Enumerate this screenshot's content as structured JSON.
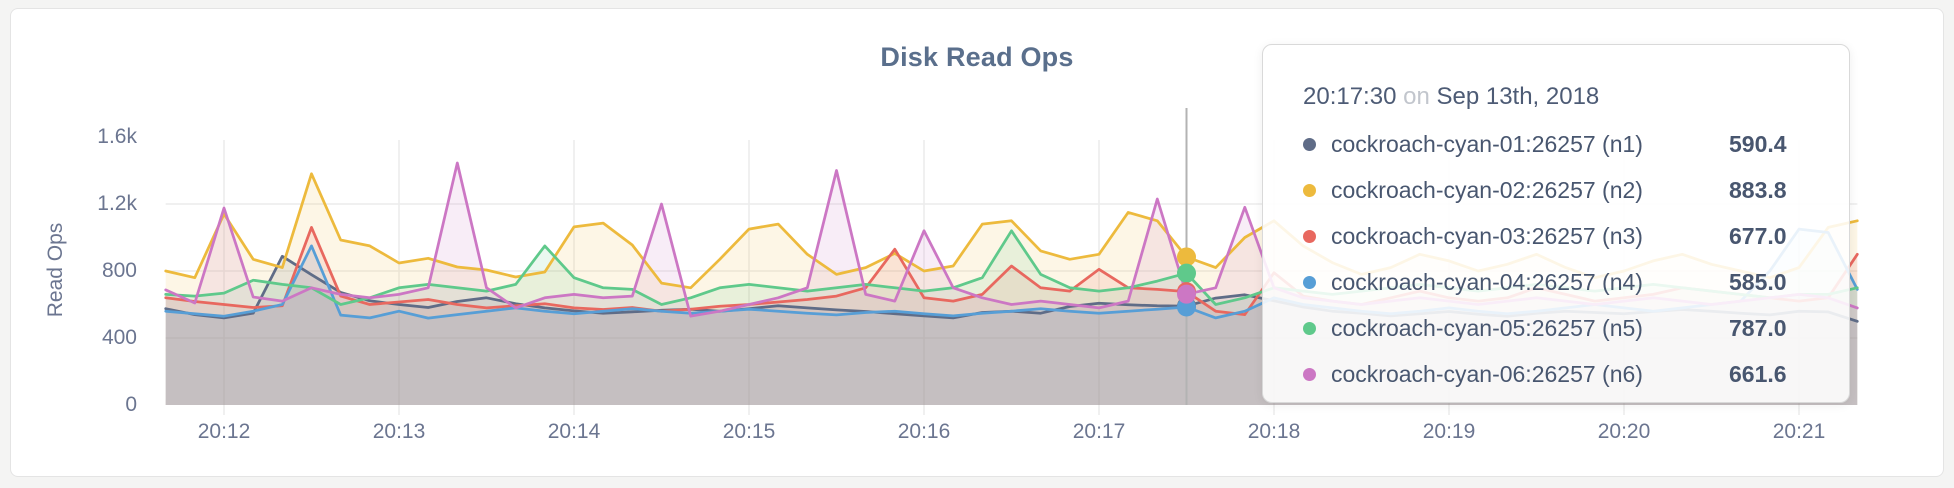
{
  "page": {
    "background": "#f4f4f3",
    "card_background": "#ffffff",
    "card_border": "#e4e4e4"
  },
  "chart": {
    "title": "Disk Read Ops",
    "ylabel": "Read Ops",
    "grid_color": "#ececec",
    "guideline_color": "#b3b3b3",
    "axis_text_color": "#6b7590"
  },
  "tooltip": {
    "time": "20:17:30",
    "on_word": "on",
    "date": "Sep 13th, 2018",
    "rows": [
      {
        "label": "cockroach-cyan-01:26257 (n1)",
        "value": "590.4",
        "color": "#5F6C87"
      },
      {
        "label": "cockroach-cyan-02:26257 (n2)",
        "value": "883.8",
        "color": "#EDBA3D"
      },
      {
        "label": "cockroach-cyan-03:26257 (n3)",
        "value": "677.0",
        "color": "#E8685F"
      },
      {
        "label": "cockroach-cyan-04:26257 (n4)",
        "value": "585.0",
        "color": "#579ED6"
      },
      {
        "label": "cockroach-cyan-05:26257 (n5)",
        "value": "787.0",
        "color": "#5FC98B"
      },
      {
        "label": "cockroach-cyan-06:26257 (n6)",
        "value": "661.6",
        "color": "#CC77C4"
      }
    ]
  },
  "chart_data": {
    "type": "area",
    "title": "Disk Read Ops",
    "ylabel": "Read Ops",
    "x_start": "20:11:40",
    "x_step_seconds": 10,
    "x_ticks": [
      "20:12",
      "20:13",
      "20:14",
      "20:15",
      "20:16",
      "20:17",
      "20:18",
      "20:19",
      "20:20",
      "20:21"
    ],
    "y_ticks": [
      "0",
      "400",
      "800",
      "1.2k",
      "1.6k"
    ],
    "y_tick_values": [
      0,
      400,
      800,
      1200,
      1600
    ],
    "ylim": [
      0,
      1600
    ],
    "grid": true,
    "legend_position": "tooltip",
    "highlight_index": 35,
    "highlight_time": "20:17:30",
    "highlight_date": "Sep 13th, 2018",
    "series": [
      {
        "name": "cockroach-cyan-01:26257 (n1)",
        "color": "#5F6C87",
        "highlight_value": 590.4,
        "values": [
          575,
          540,
          520,
          548,
          888,
          778,
          672,
          622,
          600,
          582,
          618,
          640,
          605,
          580,
          562,
          548,
          556,
          566,
          572,
          560,
          575,
          592,
          580,
          568,
          558,
          545,
          532,
          520,
          552,
          560,
          548,
          588,
          608,
          598,
          592,
          590.4,
          638,
          658,
          622,
          585,
          560,
          548,
          532,
          545,
          558,
          542,
          530,
          548,
          560,
          552,
          545,
          558,
          570,
          560,
          548,
          538,
          560,
          556,
          500
        ]
      },
      {
        "name": "cockroach-cyan-02:26257 (n2)",
        "color": "#EDBA3D",
        "highlight_value": 883.8,
        "values": [
          800,
          760,
          1140,
          870,
          820,
          1380,
          985,
          950,
          848,
          876,
          824,
          806,
          764,
          794,
          1063,
          1086,
          955,
          728,
          700,
          870,
          1050,
          1080,
          900,
          780,
          820,
          905,
          800,
          830,
          1080,
          1100,
          920,
          870,
          900,
          1150,
          1100,
          883.8,
          820,
          1000,
          1100,
          950,
          850,
          780,
          820,
          900,
          860,
          800,
          840,
          900,
          820,
          760,
          800,
          860,
          900,
          840,
          800,
          760,
          820,
          1060,
          1100
        ]
      },
      {
        "name": "cockroach-cyan-03:26257 (n3)",
        "color": "#E8685F",
        "highlight_value": 677.0,
        "values": [
          640,
          618,
          600,
          582,
          592,
          1060,
          650,
          600,
          615,
          630,
          600,
          580,
          592,
          605,
          580,
          570,
          582,
          560,
          572,
          590,
          600,
          615,
          630,
          650,
          700,
          930,
          640,
          620,
          660,
          830,
          700,
          680,
          810,
          700,
          690,
          677.0,
          560,
          540,
          790,
          650,
          620,
          600,
          640,
          680,
          640,
          620,
          640,
          700,
          660,
          620,
          640,
          660,
          700,
          680,
          660,
          640,
          620,
          640,
          900
        ]
      },
      {
        "name": "cockroach-cyan-04:26257 (n4)",
        "color": "#579ED6",
        "highlight_value": 585.0,
        "values": [
          560,
          545,
          530,
          560,
          600,
          950,
          537,
          520,
          560,
          519,
          540,
          560,
          580,
          560,
          545,
          560,
          575,
          560,
          548,
          560,
          572,
          560,
          548,
          538,
          552,
          560,
          545,
          532,
          548,
          560,
          575,
          560,
          548,
          560,
          572,
          585.0,
          520,
          560,
          640,
          600,
          580,
          560,
          545,
          560,
          580,
          560,
          545,
          560,
          580,
          600,
          580,
          560,
          580,
          600,
          620,
          800,
          1050,
          1030,
          690
        ]
      },
      {
        "name": "cockroach-cyan-05:26257 (n5)",
        "color": "#5FC98B",
        "highlight_value": 787.0,
        "values": [
          660,
          650,
          668,
          745,
          720,
          700,
          600,
          640,
          700,
          720,
          700,
          680,
          720,
          950,
          760,
          700,
          690,
          600,
          640,
          700,
          720,
          700,
          680,
          700,
          720,
          700,
          680,
          700,
          760,
          1040,
          780,
          700,
          680,
          700,
          740,
          787.0,
          600,
          640,
          700,
          680,
          660,
          680,
          700,
          720,
          700,
          680,
          700,
          720,
          700,
          680,
          700,
          720,
          700,
          680,
          660,
          640,
          660,
          660,
          700
        ]
      },
      {
        "name": "cockroach-cyan-06:26257 (n6)",
        "color": "#CC77C4",
        "highlight_value": 661.6,
        "values": [
          687,
          609,
          1176,
          645,
          620,
          700,
          660,
          640,
          660,
          700,
          1445,
          700,
          580,
          640,
          660,
          640,
          650,
          1200,
          530,
          560,
          600,
          640,
          700,
          1400,
          660,
          620,
          1040,
          700,
          640,
          600,
          620,
          600,
          580,
          620,
          1230,
          661.6,
          700,
          1180,
          700,
          640,
          620,
          600,
          620,
          640,
          620,
          600,
          620,
          640,
          620,
          600,
          620,
          640,
          620,
          600,
          620,
          640,
          660,
          640,
          580
        ]
      }
    ]
  }
}
